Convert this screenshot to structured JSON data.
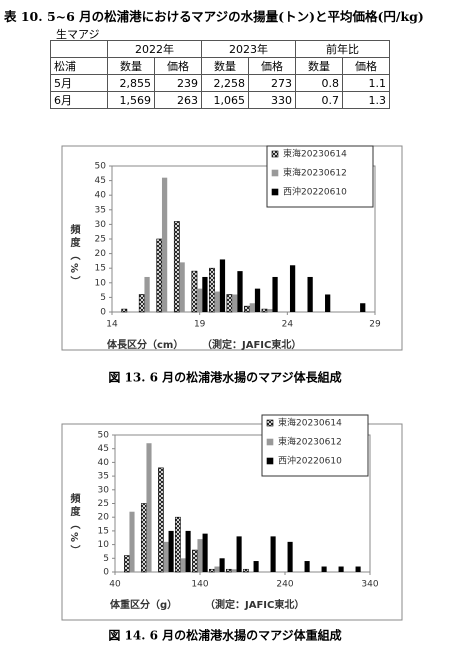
{
  "title": "表 10. 5~6 月の松浦港におけるマアジの水揚量(トン)と平均価格(円/kg)",
  "table_label": "生マアジ",
  "table": {
    "header_years": [
      "2022年",
      "2023年",
      "前年比"
    ],
    "header_row": [
      "松浦",
      "数量",
      "価格",
      "数量",
      "価格",
      "数量",
      "価格"
    ],
    "rows": [
      [
        "5月",
        "2,855",
        "239",
        "2,258",
        "273",
        "0.8",
        "1.1"
      ],
      [
        "6月",
        "1,569",
        "263",
        "1,065",
        "330",
        "0.7",
        "1.3"
      ]
    ]
  },
  "chart_data": [
    {
      "type": "bar",
      "caption": "図 13. 6 月の松浦港水揚のマアジ体長組成",
      "y_label": "頻度（%）",
      "x_label": "体長区分（cm）",
      "annotation": "（測定：JAFIC東北）",
      "x": [
        15,
        16,
        17,
        18,
        19,
        20,
        21,
        22,
        23,
        24,
        25,
        26,
        27,
        28
      ],
      "series": [
        {
          "name": "東海20230614",
          "color": "#000000",
          "pattern": "crosshatch",
          "values": [
            1,
            6,
            25,
            31,
            14,
            15,
            6,
            2,
            1,
            0,
            0,
            0,
            0,
            0
          ]
        },
        {
          "name": "東海20230612",
          "color": "#999999",
          "values": [
            0,
            12,
            46,
            17,
            8,
            7,
            6,
            3,
            1,
            0,
            0,
            0,
            0,
            0
          ]
        },
        {
          "name": "西沖20220610",
          "color": "#000000",
          "values": [
            0,
            0,
            0,
            0,
            12,
            18,
            14,
            8,
            12,
            16,
            12,
            6,
            0,
            3
          ]
        }
      ],
      "xlim": [
        14,
        29
      ],
      "xticks": [
        14,
        19,
        24,
        29
      ],
      "ylim": [
        0,
        50
      ],
      "yticks": [
        0,
        5,
        10,
        15,
        20,
        25,
        30,
        35,
        40,
        45,
        50
      ],
      "legend": "upper right"
    },
    {
      "type": "bar",
      "caption": "図 14. 6 月の松浦港水揚のマアジ体重組成",
      "y_label": "頻度（%）",
      "x_label": "体重区分（g）",
      "annotation": "（測定：JAFIC東北）",
      "x": [
        60,
        80,
        100,
        120,
        140,
        160,
        180,
        200,
        220,
        240,
        260,
        280,
        300,
        320
      ],
      "series": [
        {
          "name": "東海20230614",
          "color": "#000000",
          "pattern": "crosshatch",
          "values": [
            6,
            25,
            38,
            20,
            8,
            1,
            1,
            1,
            0,
            0,
            0,
            0,
            0,
            0
          ]
        },
        {
          "name": "東海20230612",
          "color": "#999999",
          "values": [
            22,
            47,
            11,
            5,
            12,
            2,
            1,
            0,
            0,
            0,
            0,
            0,
            0,
            0
          ]
        },
        {
          "name": "西沖20220610",
          "color": "#000000",
          "values": [
            0,
            0,
            15,
            15,
            14,
            5,
            13,
            4,
            13,
            11,
            4,
            2,
            2,
            2
          ]
        }
      ],
      "xlim": [
        40,
        340
      ],
      "xticks": [
        40,
        140,
        240,
        340
      ],
      "ylim": [
        0,
        50
      ],
      "yticks": [
        0,
        5,
        10,
        15,
        20,
        25,
        30,
        35,
        40,
        45,
        50
      ],
      "legend": "upper right"
    }
  ]
}
